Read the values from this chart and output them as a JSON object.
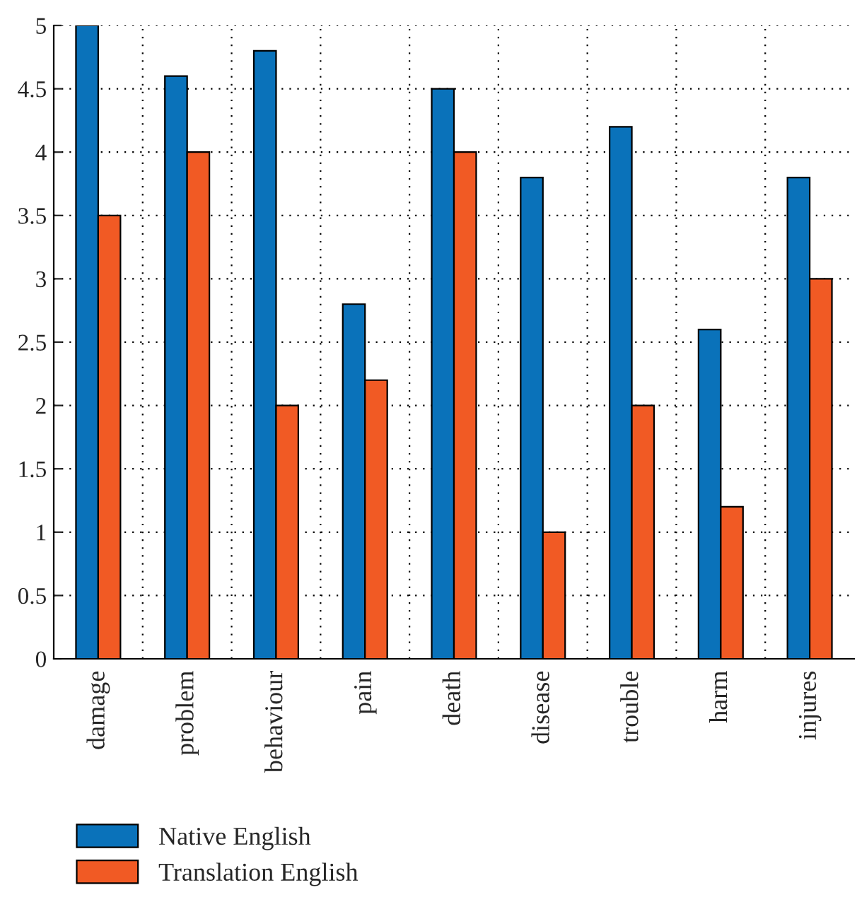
{
  "chart_data": {
    "type": "bar",
    "categories": [
      "damage",
      "problem",
      "behaviour",
      "pain",
      "death",
      "disease",
      "trouble",
      "harm",
      "injures"
    ],
    "series": [
      {
        "name": "Native English",
        "color": "#0a72ba",
        "values": [
          5,
          4.6,
          4.8,
          2.8,
          4.5,
          3.8,
          4.2,
          2.6,
          3.8
        ]
      },
      {
        "name": "Translation English",
        "color": "#f15a24",
        "values": [
          3.5,
          4,
          2,
          2.2,
          4,
          1,
          2,
          1.2,
          3
        ]
      }
    ],
    "ylim": [
      0,
      5
    ],
    "yticks": [
      0,
      0.5,
      1,
      1.5,
      2,
      2.5,
      3,
      3.5,
      4,
      4.5,
      5
    ],
    "grid": true,
    "legend": "bottom left"
  }
}
